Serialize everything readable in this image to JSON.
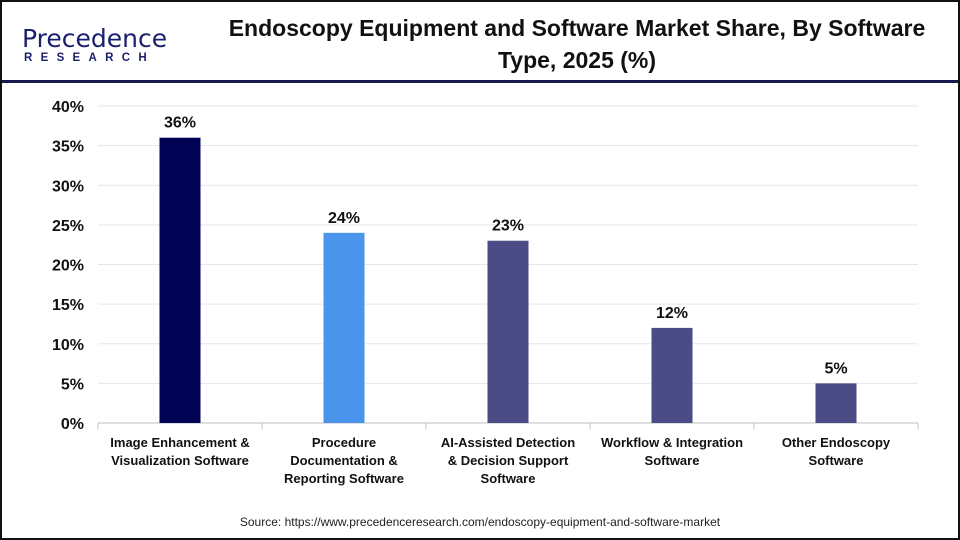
{
  "logo": {
    "line1": "Precedence",
    "line2": "RESEARCH"
  },
  "title": "Endoscopy Equipment and Software Market Share, By Software Type, 2025 (%)",
  "source": "Source: https://www.precedenceresearch.com/endoscopy-equipment-and-software-market",
  "chart_data": {
    "type": "bar",
    "title": "Endoscopy Equipment and Software Market Share, By Software Type, 2025 (%)",
    "categories": [
      [
        "Image Enhancement &",
        "Visualization Software"
      ],
      [
        "Procedure",
        "Documentation &",
        "Reporting Software"
      ],
      [
        "AI-Assisted Detection",
        "& Decision Support",
        "Software"
      ],
      [
        "Workflow & Integration",
        "Software"
      ],
      [
        "Other Endoscopy",
        "Software"
      ]
    ],
    "values": [
      36,
      24,
      23,
      12,
      5
    ],
    "data_labels": [
      "36%",
      "24%",
      "23%",
      "12%",
      "5%"
    ],
    "colors": [
      "#000353",
      "#4a94ec",
      "#4b4b86",
      "#4b4b86",
      "#4b4b86"
    ],
    "ylim": [
      0,
      40
    ],
    "yticks": [
      0,
      5,
      10,
      15,
      20,
      25,
      30,
      35,
      40
    ],
    "ytick_labels": [
      "0%",
      "5%",
      "10%",
      "15%",
      "20%",
      "25%",
      "30%",
      "35%",
      "40%"
    ],
    "grid": true,
    "legend": "none"
  }
}
